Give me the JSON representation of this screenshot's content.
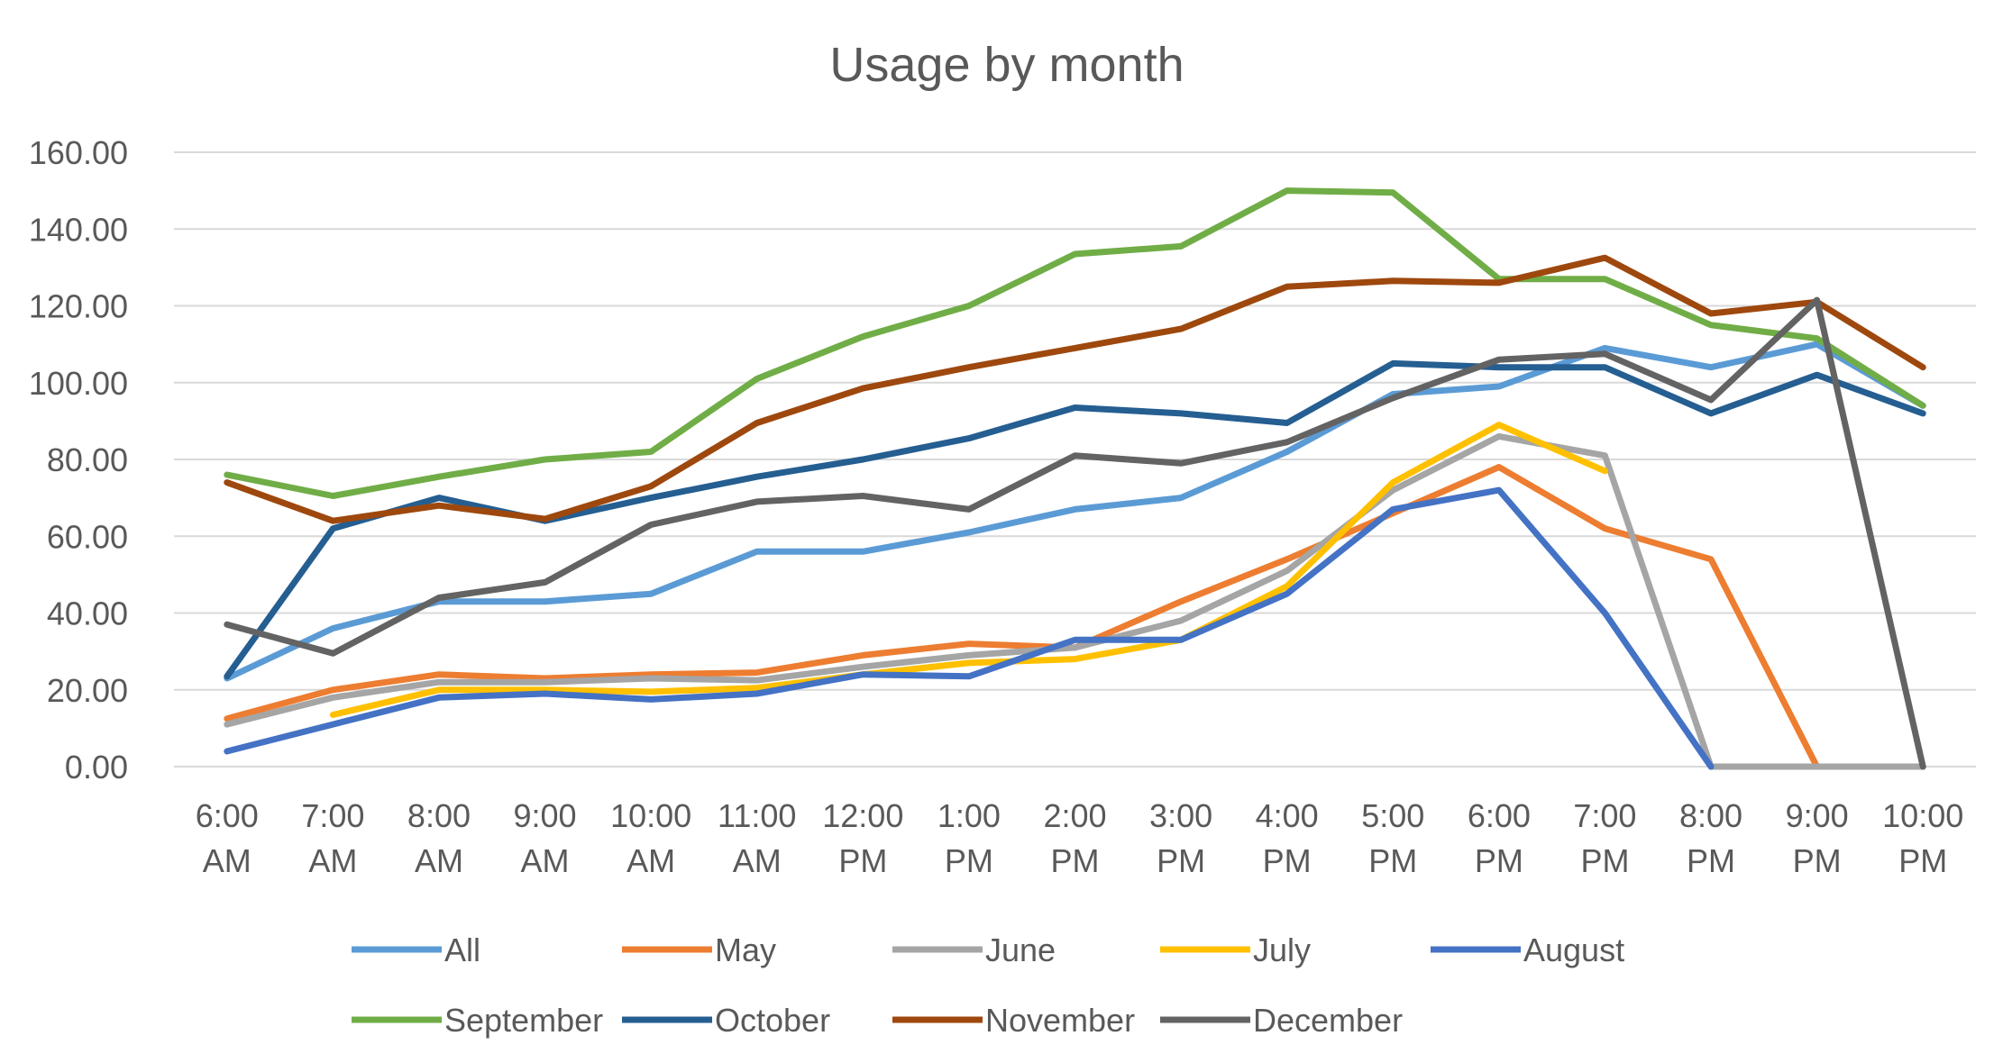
{
  "chart_data": {
    "type": "line",
    "title": "Usage by month",
    "xlabel": "",
    "ylabel": "",
    "ylim": [
      0,
      160
    ],
    "yticks": [
      "0.00",
      "20.00",
      "40.00",
      "60.00",
      "80.00",
      "100.00",
      "120.00",
      "140.00",
      "160.00"
    ],
    "categories": [
      [
        "6:00",
        "AM"
      ],
      [
        "7:00",
        "AM"
      ],
      [
        "8:00",
        "AM"
      ],
      [
        "9:00",
        "AM"
      ],
      [
        "10:00",
        "AM"
      ],
      [
        "11:00",
        "AM"
      ],
      [
        "12:00",
        "PM"
      ],
      [
        "1:00",
        "PM"
      ],
      [
        "2:00",
        "PM"
      ],
      [
        "3:00",
        "PM"
      ],
      [
        "4:00",
        "PM"
      ],
      [
        "5:00",
        "PM"
      ],
      [
        "6:00",
        "PM"
      ],
      [
        "7:00",
        "PM"
      ],
      [
        "8:00",
        "PM"
      ],
      [
        "9:00",
        "PM"
      ],
      [
        "10:00",
        "PM"
      ]
    ],
    "grid": true,
    "legend_position": "bottom",
    "series": [
      {
        "name": "All",
        "color": "#5B9BD5",
        "values": [
          23,
          36,
          43,
          43,
          45,
          56,
          56,
          61,
          67,
          70,
          82,
          97,
          99,
          109,
          104,
          110,
          94
        ]
      },
      {
        "name": "May",
        "color": "#ED7D31",
        "values": [
          12.5,
          20,
          24,
          23,
          24,
          24.5,
          29,
          32,
          31,
          43,
          54,
          66,
          78,
          62,
          54,
          0,
          0
        ]
      },
      {
        "name": "June",
        "color": "#A5A5A5",
        "values": [
          11,
          18,
          22,
          22,
          23,
          22.5,
          26,
          29,
          31,
          38,
          51,
          72,
          86,
          81,
          0,
          0,
          0
        ]
      },
      {
        "name": "July",
        "color": "#FFC000",
        "values": [
          null,
          13.5,
          20,
          20,
          19.5,
          20.5,
          24,
          27,
          28,
          33,
          47,
          74,
          89,
          77,
          null,
          null,
          null
        ]
      },
      {
        "name": "August",
        "color": "#4472C4",
        "values": [
          4,
          11,
          18,
          19,
          17.5,
          19,
          24,
          23.5,
          33,
          33,
          45,
          67,
          72,
          40,
          0,
          null,
          null
        ]
      },
      {
        "name": "September",
        "color": "#70AD47",
        "values": [
          76,
          70.5,
          75.5,
          80,
          82,
          101,
          112,
          120,
          133.5,
          135.5,
          150,
          149.5,
          127,
          127,
          115,
          111.5,
          94
        ]
      },
      {
        "name": "October",
        "color": "#255E91",
        "values": [
          23.5,
          62,
          70,
          64,
          70,
          75.5,
          80,
          85.5,
          93.5,
          92,
          89.5,
          105,
          104,
          104,
          92,
          102,
          92
        ]
      },
      {
        "name": "November",
        "color": "#9E480E",
        "values": [
          74,
          64,
          68,
          64.5,
          73,
          89.5,
          98.5,
          104,
          109,
          114,
          125,
          126.5,
          126,
          132.5,
          118,
          121,
          104
        ]
      },
      {
        "name": "December",
        "color": "#636363",
        "values": [
          37,
          29.5,
          44,
          48,
          63,
          69,
          70.5,
          67,
          81,
          79,
          84.5,
          96,
          106,
          107.5,
          95.5,
          121.5,
          0
        ]
      }
    ]
  }
}
